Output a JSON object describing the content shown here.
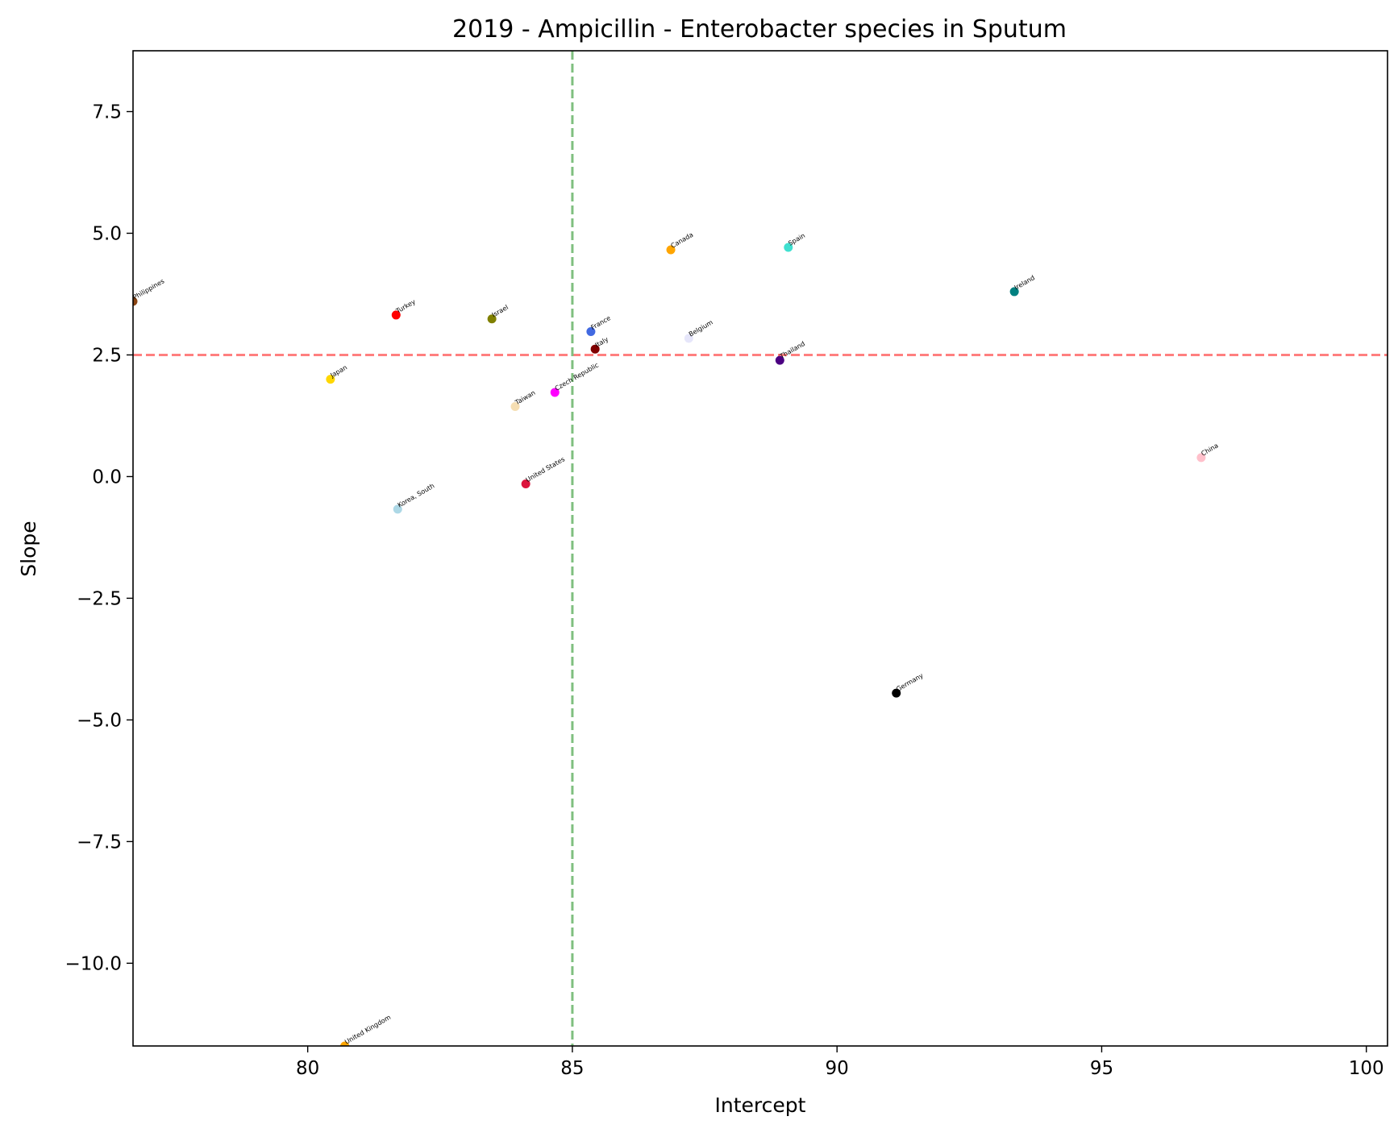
{
  "chart_data": {
    "type": "scatter",
    "title": "2019 - Ampicillin - Enterobacter species in Sputum",
    "xlabel": "Intercept",
    "ylabel": "Slope",
    "xlim": [
      76.7,
      100.4
    ],
    "ylim": [
      -11.7,
      8.75
    ],
    "xticks": [
      80,
      85,
      90,
      95,
      100
    ],
    "xtick_labels": [
      "80",
      "85",
      "90",
      "95",
      "100"
    ],
    "yticks": [
      7.5,
      5.0,
      2.5,
      0.0,
      -2.5,
      -5.0,
      -7.5,
      -10.0
    ],
    "ytick_labels": [
      "7.5",
      "5.0",
      "2.5",
      "0.0",
      "−2.5",
      "−5.0",
      "−7.5",
      "−10.0"
    ],
    "grid": false,
    "reference_lines": [
      {
        "orientation": "horizontal",
        "value": 2.5,
        "color": "#ff7f7f",
        "style": "dashed"
      },
      {
        "orientation": "vertical",
        "value": 85.0,
        "color": "#7fbf7f",
        "style": "dashed"
      }
    ],
    "points": [
      {
        "label": "Philippines",
        "x": 76.7,
        "y": 3.6,
        "color": "#8b4513"
      },
      {
        "label": "Turkey",
        "x": 81.67,
        "y": 3.32,
        "color": "#ff0000"
      },
      {
        "label": "Israel",
        "x": 83.48,
        "y": 3.24,
        "color": "#808000"
      },
      {
        "label": "Canada",
        "x": 86.86,
        "y": 4.66,
        "color": "#ffa500"
      },
      {
        "label": "Spain",
        "x": 89.08,
        "y": 4.71,
        "color": "#40e0d0"
      },
      {
        "label": "Ireland",
        "x": 93.35,
        "y": 3.8,
        "color": "#008080"
      },
      {
        "label": "France",
        "x": 85.35,
        "y": 2.98,
        "color": "#4169e1"
      },
      {
        "label": "Italy",
        "x": 85.43,
        "y": 2.62,
        "color": "#800000"
      },
      {
        "label": "Belgium",
        "x": 87.2,
        "y": 2.84,
        "color": "#e6e6fa"
      },
      {
        "label": "Thailand",
        "x": 88.92,
        "y": 2.39,
        "color": "#4b0082"
      },
      {
        "label": "Japan",
        "x": 80.43,
        "y": 2.0,
        "color": "#ffd700"
      },
      {
        "label": "Czech Republic",
        "x": 84.67,
        "y": 1.73,
        "color": "#ff00ff"
      },
      {
        "label": "Taiwan",
        "x": 83.92,
        "y": 1.44,
        "color": "#f5deb3"
      },
      {
        "label": "China",
        "x": 96.88,
        "y": 0.39,
        "color": "#ffc0cb"
      },
      {
        "label": "United States",
        "x": 84.12,
        "y": -0.15,
        "color": "#dc143c"
      },
      {
        "label": "Korea, South",
        "x": 81.7,
        "y": -0.67,
        "color": "#add8e6"
      },
      {
        "label": "Germany",
        "x": 91.12,
        "y": -4.45,
        "color": "#000000"
      },
      {
        "label": "United Kingdom",
        "x": 80.7,
        "y": -11.7,
        "color": "#ffa500"
      }
    ]
  }
}
